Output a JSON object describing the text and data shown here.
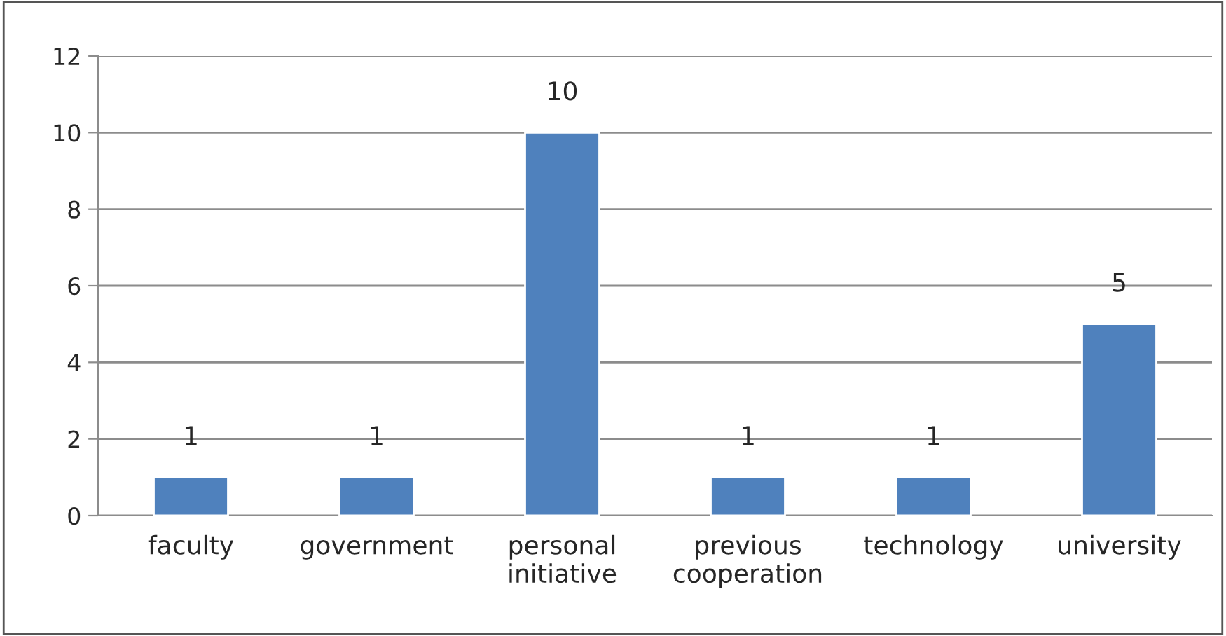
{
  "chart_data": {
    "type": "bar",
    "categories": [
      "faculty",
      "government",
      "personal\ninitiative",
      "previous\ncooperation",
      "technology",
      "university"
    ],
    "values": [
      1,
      1,
      10,
      1,
      1,
      5
    ],
    "color": "#4f81bd",
    "ylim": [
      0,
      12
    ],
    "yticks": [
      0,
      2,
      4,
      6,
      8,
      10,
      12
    ],
    "grid": "y",
    "data_labels": true
  }
}
